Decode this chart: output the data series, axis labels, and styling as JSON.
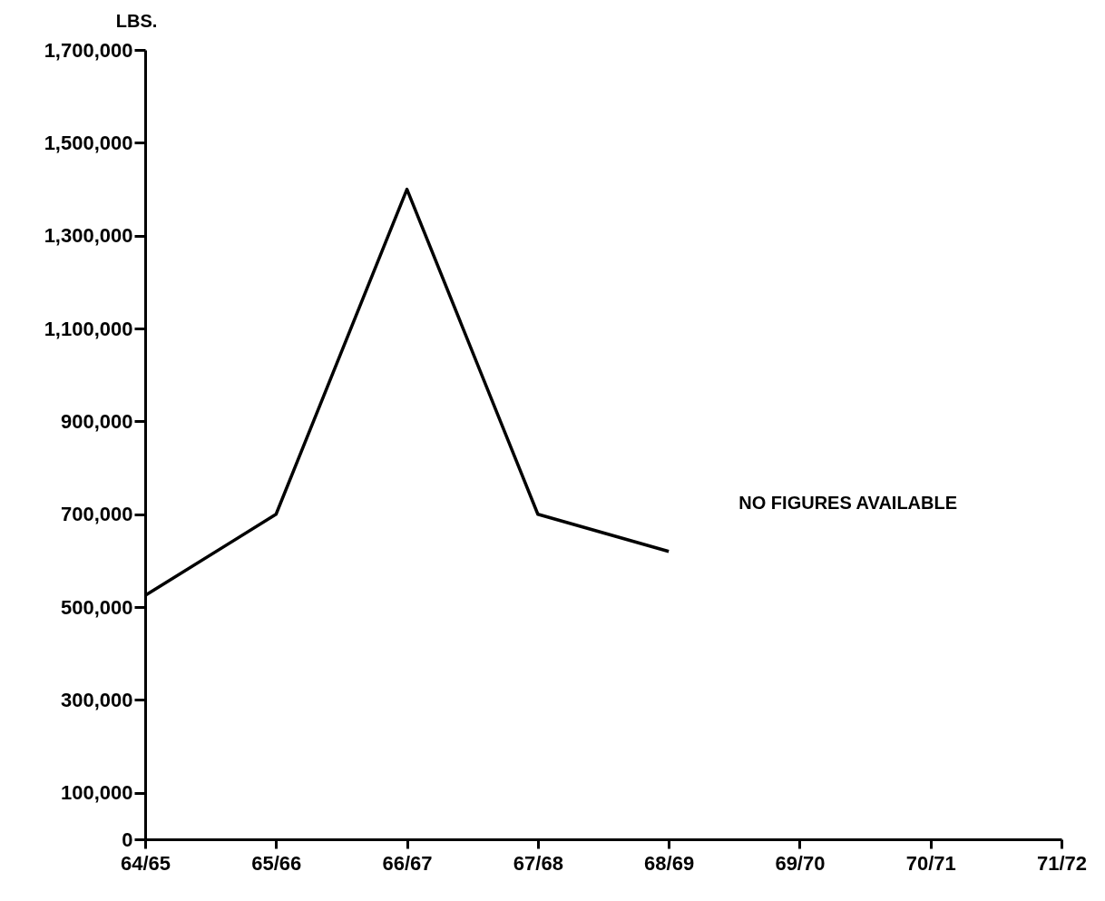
{
  "chart_data": {
    "type": "line",
    "ylabel": "LBS.",
    "categories": [
      "64/65",
      "65/66",
      "66/67",
      "67/68",
      "68/69",
      "69/70",
      "70/71",
      "71/72"
    ],
    "series": [
      {
        "color": "#000000",
        "values": [
          525000,
          700000,
          1400000,
          700000,
          620000,
          null,
          null,
          null
        ]
      }
    ],
    "ylim": [
      0,
      1700000
    ],
    "yticks": [
      0,
      {
        "value": 100000,
        "label": "100,000"
      },
      {
        "value": 300000,
        "label": "300,000"
      },
      {
        "value": 500000,
        "label": "500,000"
      },
      {
        "value": 700000,
        "label": "700,000"
      },
      {
        "value": 900000,
        "label": "900,000"
      },
      {
        "value": 1100000,
        "label": "1,100,000"
      },
      {
        "value": 1300000,
        "label": "1,300,000"
      },
      {
        "value": 1500000,
        "label": "1,500,000"
      },
      {
        "value": 1700000,
        "label": "1,700,000"
      }
    ],
    "annotations": [
      "NO FIGURES AVAILABLE"
    ]
  }
}
